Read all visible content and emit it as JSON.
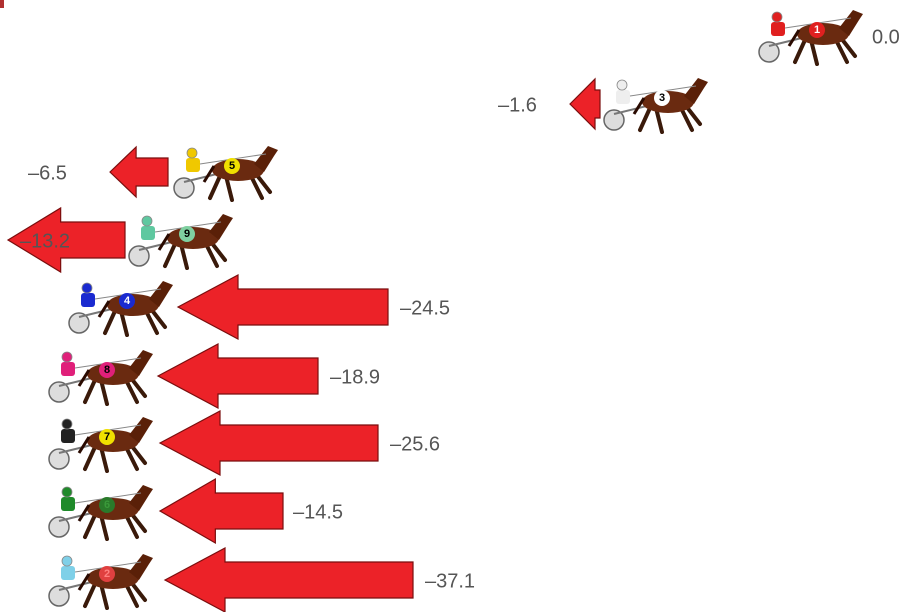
{
  "rows": [
    {
      "horse": "1",
      "label": "0.0"
    },
    {
      "horse": "3",
      "label": "–1.6"
    },
    {
      "horse": "5",
      "label": "–6.5"
    },
    {
      "horse": "9",
      "label": "–13.2"
    },
    {
      "horse": "4",
      "label": "–24.5"
    },
    {
      "horse": "8",
      "label": "–18.9"
    },
    {
      "horse": "7",
      "label": "–25.6"
    },
    {
      "horse": "6",
      "label": "–14.5"
    },
    {
      "horse": "2",
      "label": "–37.1"
    }
  ]
}
